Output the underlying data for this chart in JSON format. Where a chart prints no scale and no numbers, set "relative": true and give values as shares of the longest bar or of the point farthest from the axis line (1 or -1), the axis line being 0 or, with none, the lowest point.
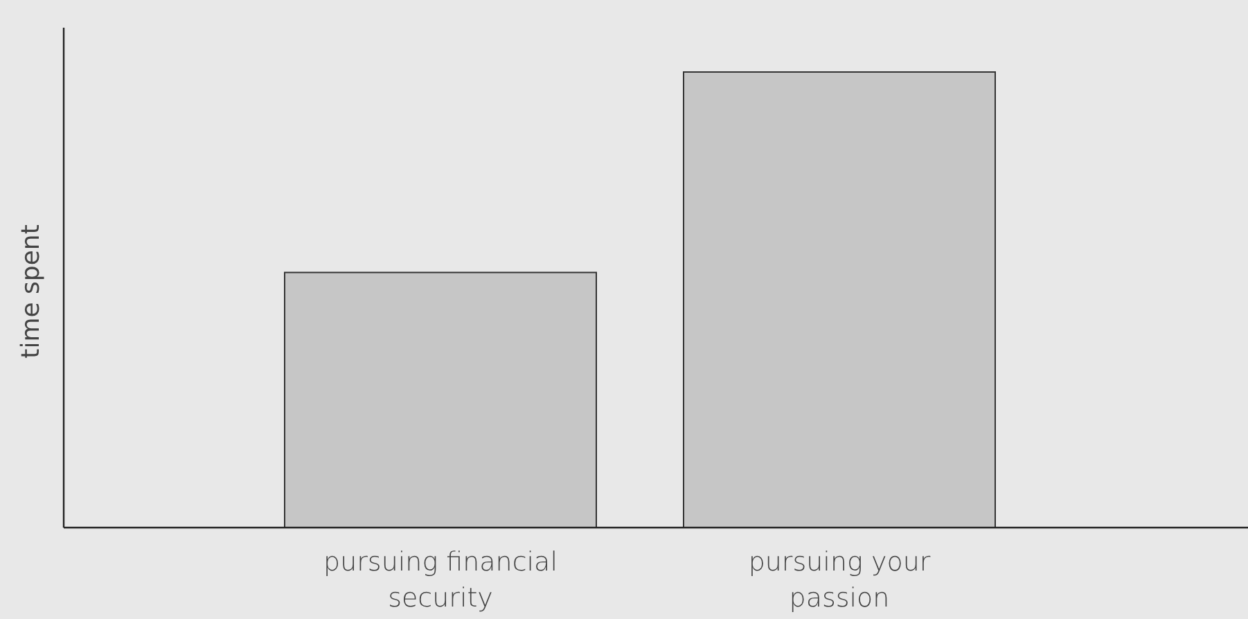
{
  "chart_data": {
    "type": "bar",
    "ylabel": "time spent",
    "relative": true,
    "categories": [
      "pursuing financial security",
      "pursuing your passion"
    ],
    "values": [
      0.56,
      1
    ],
    "color": "#c6c6c6"
  }
}
